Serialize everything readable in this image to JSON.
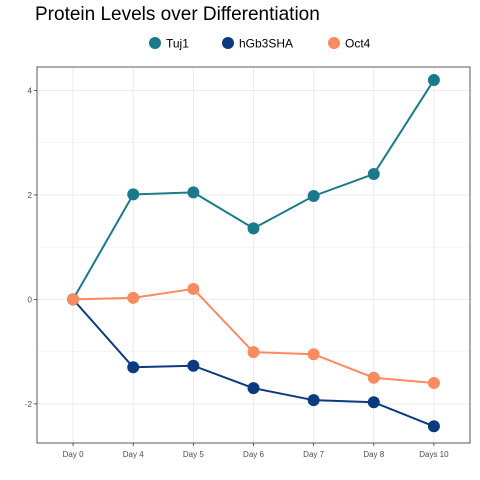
{
  "chart_data": {
    "type": "line",
    "title": "Protein Levels over Differentiation",
    "xlabel": "",
    "ylabel": "",
    "categories": [
      "Day 0",
      "Day 4",
      "Day 5",
      "Day 6",
      "Day 7",
      "Day 8",
      "Days 10"
    ],
    "ylim": [
      -2.75,
      4.45
    ],
    "yticks": [
      -2,
      0,
      2,
      4
    ],
    "grid": true,
    "legend_position": "top",
    "series": [
      {
        "name": "Tuj1",
        "color": "#1a7a8a",
        "values": [
          0,
          2.01,
          2.05,
          1.36,
          1.98,
          2.4,
          4.2
        ]
      },
      {
        "name": "hGb3SHA",
        "color": "#0b3a7e",
        "values": [
          0,
          -1.3,
          -1.27,
          -1.7,
          -1.93,
          -1.97,
          -2.43
        ]
      },
      {
        "name": "Oct4",
        "color": "#f98b60",
        "values": [
          0,
          0.03,
          0.2,
          -1.01,
          -1.05,
          -1.5,
          -1.6
        ]
      }
    ]
  }
}
